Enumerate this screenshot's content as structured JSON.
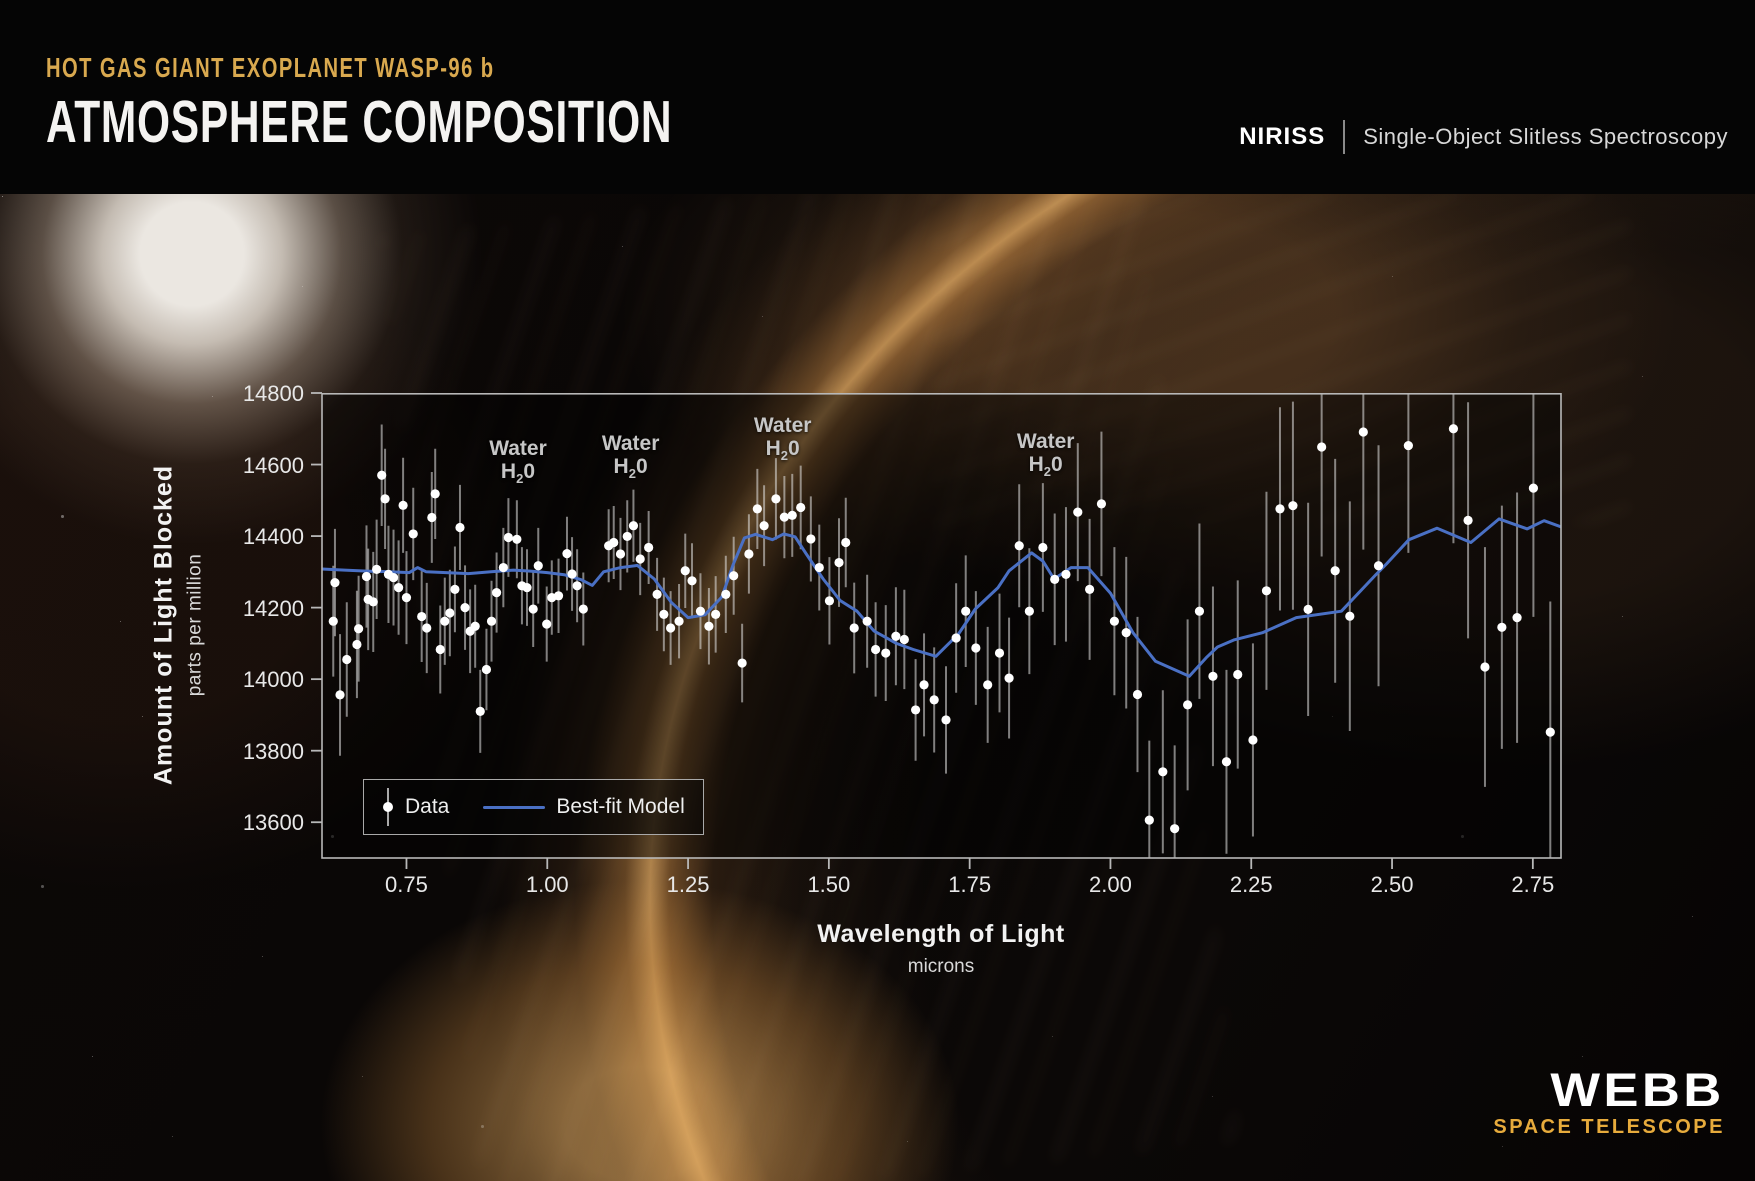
{
  "header": {
    "eyebrow": "HOT GAS GIANT EXOPLANET WASP-96 b",
    "title": "ATMOSPHERE COMPOSITION",
    "instrument": "NIRISS",
    "mode": "Single-Object Slitless Spectroscopy"
  },
  "branding": {
    "logo_main": "WEBB",
    "logo_sub": "SPACE TELESCOPE"
  },
  "colors": {
    "accent_gold": "#d9a94f",
    "logo_gold": "#e7ab3c",
    "model_blue": "#4a70c4",
    "data_white": "#ffffff",
    "axis_gray": "#b8b8b8",
    "error_bar": "rgba(228,228,228,0.55)",
    "annotation_gray": "#c6c6c6",
    "plot_fill": "rgba(2,2,2,0.48)"
  },
  "chart_data": {
    "type": "scatter",
    "title": "",
    "xlabel": "Wavelength of Light",
    "xlabel_sub": "microns",
    "ylabel": "Amount of Light Blocked",
    "ylabel_sub": "parts per million",
    "xlim": [
      0.6,
      2.8
    ],
    "ylim": [
      13500,
      14800
    ],
    "grid": false,
    "x_ticks": [
      "0.75",
      "1.00",
      "1.25",
      "1.50",
      "1.75",
      "2.00",
      "2.25",
      "2.50",
      "2.75"
    ],
    "y_ticks": [
      "14800",
      "14600",
      "14400",
      "14200",
      "14000",
      "13800",
      "13600"
    ],
    "legend": [
      {
        "label": "Data",
        "type": "point"
      },
      {
        "label": "Best-fit Model",
        "type": "line"
      }
    ],
    "annotations": [
      {
        "label": "Water",
        "formula": [
          "H",
          "2",
          "0"
        ],
        "x": 0.948,
        "y": 14640
      },
      {
        "label": "Water",
        "formula": [
          "H",
          "2",
          "0"
        ],
        "x": 1.148,
        "y": 14655
      },
      {
        "label": "Water",
        "formula": [
          "H",
          "2",
          "0"
        ],
        "x": 1.418,
        "y": 14705
      },
      {
        "label": "Water",
        "formula": [
          "H",
          "2",
          "0"
        ],
        "x": 1.885,
        "y": 14660
      }
    ],
    "series": [
      {
        "name": "Data",
        "type": "scatter",
        "points": [
          [
            0.62,
            14162,
            155
          ],
          [
            0.623,
            14270,
            150
          ],
          [
            0.632,
            13956,
            170
          ],
          [
            0.644,
            14055,
            160
          ],
          [
            0.662,
            14097,
            150
          ],
          [
            0.665,
            14141,
            148
          ],
          [
            0.679,
            14287,
            143
          ],
          [
            0.682,
            14223,
            142
          ],
          [
            0.691,
            14216,
            140
          ],
          [
            0.697,
            14307,
            139
          ],
          [
            0.706,
            14570,
            142
          ],
          [
            0.712,
            14504,
            140
          ],
          [
            0.718,
            14293,
            136
          ],
          [
            0.727,
            14284,
            134
          ],
          [
            0.736,
            14256,
            132
          ],
          [
            0.744,
            14486,
            133
          ],
          [
            0.75,
            14228,
            130
          ],
          [
            0.762,
            14406,
            129
          ],
          [
            0.777,
            14175,
            127
          ],
          [
            0.786,
            14143,
            126
          ],
          [
            0.795,
            14452,
            127
          ],
          [
            0.801,
            14518,
            126
          ],
          [
            0.81,
            14083,
            123
          ],
          [
            0.818,
            14162,
            122
          ],
          [
            0.827,
            14185,
            121
          ],
          [
            0.836,
            14251,
            120
          ],
          [
            0.845,
            14424,
            119
          ],
          [
            0.854,
            14200,
            118
          ],
          [
            0.863,
            14134,
            117
          ],
          [
            0.872,
            14148,
            116
          ],
          [
            0.881,
            13910,
            116
          ],
          [
            0.892,
            14027,
            114
          ],
          [
            0.901,
            14162,
            113
          ],
          [
            0.91,
            14242,
            112
          ],
          [
            0.922,
            14312,
            111
          ],
          [
            0.931,
            14396,
            110
          ],
          [
            0.946,
            14391,
            109
          ],
          [
            0.955,
            14261,
            108
          ],
          [
            0.964,
            14256,
            107
          ],
          [
            0.975,
            14196,
            106
          ],
          [
            0.984,
            14317,
            106
          ],
          [
            0.999,
            14154,
            105
          ],
          [
            1.008,
            14228,
            104
          ],
          [
            1.02,
            14233,
            104
          ],
          [
            1.035,
            14351,
            103
          ],
          [
            1.044,
            14294,
            103
          ],
          [
            1.053,
            14261,
            102
          ],
          [
            1.064,
            14196,
            102
          ],
          [
            1.109,
            14373,
            102
          ],
          [
            1.118,
            14382,
            102
          ],
          [
            1.13,
            14350,
            101
          ],
          [
            1.142,
            14399,
            101
          ],
          [
            1.153,
            14429,
            101
          ],
          [
            1.165,
            14336,
            101
          ],
          [
            1.18,
            14368,
            102
          ],
          [
            1.195,
            14237,
            102
          ],
          [
            1.207,
            14181,
            103
          ],
          [
            1.219,
            14143,
            103
          ],
          [
            1.234,
            14162,
            104
          ],
          [
            1.245,
            14303,
            104
          ],
          [
            1.257,
            14275,
            105
          ],
          [
            1.272,
            14190,
            106
          ],
          [
            1.287,
            14148,
            107
          ],
          [
            1.299,
            14181,
            107
          ],
          [
            1.317,
            14237,
            108
          ],
          [
            1.331,
            14289,
            109
          ],
          [
            1.346,
            14045,
            110
          ],
          [
            1.358,
            14350,
            111
          ],
          [
            1.373,
            14476,
            112
          ],
          [
            1.385,
            14429,
            113
          ],
          [
            1.406,
            14504,
            114
          ],
          [
            1.421,
            14453,
            115
          ],
          [
            1.435,
            14458,
            116
          ],
          [
            1.45,
            14480,
            117
          ],
          [
            1.468,
            14392,
            119
          ],
          [
            1.483,
            14312,
            120
          ],
          [
            1.501,
            14219,
            122
          ],
          [
            1.518,
            14326,
            124
          ],
          [
            1.53,
            14382,
            125
          ],
          [
            1.545,
            14143,
            127
          ],
          [
            1.568,
            14162,
            130
          ],
          [
            1.583,
            14083,
            132
          ],
          [
            1.601,
            14073,
            134
          ],
          [
            1.619,
            14120,
            137
          ],
          [
            1.634,
            14111,
            139
          ],
          [
            1.654,
            13914,
            142
          ],
          [
            1.669,
            13984,
            144
          ],
          [
            1.687,
            13942,
            147
          ],
          [
            1.708,
            13886,
            150
          ],
          [
            1.726,
            14115,
            153
          ],
          [
            1.743,
            14190,
            156
          ],
          [
            1.761,
            14087,
            159
          ],
          [
            1.782,
            13984,
            162
          ],
          [
            1.803,
            14073,
            166
          ],
          [
            1.82,
            14003,
            169
          ],
          [
            1.838,
            14373,
            172
          ],
          [
            1.856,
            14190,
            176
          ],
          [
            1.88,
            14368,
            180
          ],
          [
            1.901,
            14279,
            184
          ],
          [
            1.921,
            14293,
            188
          ],
          [
            1.942,
            14467,
            193
          ],
          [
            1.963,
            14251,
            197
          ],
          [
            1.984,
            14490,
            202
          ],
          [
            2.007,
            14162,
            207
          ],
          [
            2.028,
            14130,
            212
          ],
          [
            2.048,
            13957,
            217
          ],
          [
            2.069,
            13606,
            222
          ],
          [
            2.093,
            13741,
            228
          ],
          [
            2.114,
            13582,
            233
          ],
          [
            2.137,
            13928,
            239
          ],
          [
            2.158,
            14190,
            245
          ],
          [
            2.182,
            14008,
            251
          ],
          [
            2.206,
            13769,
            257
          ],
          [
            2.226,
            14013,
            263
          ],
          [
            2.253,
            13830,
            270
          ],
          [
            2.277,
            14247,
            277
          ],
          [
            2.301,
            14476,
            284
          ],
          [
            2.324,
            14485,
            291
          ],
          [
            2.351,
            14195,
            298
          ],
          [
            2.375,
            14649,
            306
          ],
          [
            2.399,
            14303,
            313
          ],
          [
            2.425,
            14176,
            321
          ],
          [
            2.449,
            14691,
            329
          ],
          [
            2.476,
            14317,
            337
          ],
          [
            2.529,
            14653,
            300
          ],
          [
            2.609,
            14700,
            320
          ],
          [
            2.635,
            14444,
            330
          ],
          [
            2.665,
            14034,
            335
          ],
          [
            2.695,
            14145,
            340
          ],
          [
            2.722,
            14172,
            350
          ],
          [
            2.751,
            14534,
            360
          ],
          [
            2.781,
            13852,
            365
          ]
        ]
      },
      {
        "name": "Best-fit Model",
        "type": "line",
        "points": [
          [
            0.6,
            14308
          ],
          [
            0.64,
            14305
          ],
          [
            0.68,
            14302
          ],
          [
            0.72,
            14300
          ],
          [
            0.755,
            14298
          ],
          [
            0.77,
            14312
          ],
          [
            0.785,
            14300
          ],
          [
            0.82,
            14298
          ],
          [
            0.86,
            14295
          ],
          [
            0.9,
            14300
          ],
          [
            0.94,
            14305
          ],
          [
            0.97,
            14302
          ],
          [
            1.0,
            14298
          ],
          [
            1.03,
            14292
          ],
          [
            1.06,
            14278
          ],
          [
            1.08,
            14262
          ],
          [
            1.1,
            14300
          ],
          [
            1.13,
            14312
          ],
          [
            1.16,
            14318
          ],
          [
            1.19,
            14280
          ],
          [
            1.22,
            14215
          ],
          [
            1.25,
            14172
          ],
          [
            1.28,
            14180
          ],
          [
            1.31,
            14230
          ],
          [
            1.33,
            14320
          ],
          [
            1.35,
            14395
          ],
          [
            1.37,
            14405
          ],
          [
            1.4,
            14390
          ],
          [
            1.42,
            14406
          ],
          [
            1.44,
            14398
          ],
          [
            1.46,
            14350
          ],
          [
            1.49,
            14280
          ],
          [
            1.52,
            14220
          ],
          [
            1.55,
            14190
          ],
          [
            1.58,
            14135
          ],
          [
            1.62,
            14100
          ],
          [
            1.65,
            14083
          ],
          [
            1.69,
            14064
          ],
          [
            1.73,
            14126
          ],
          [
            1.76,
            14196
          ],
          [
            1.8,
            14255
          ],
          [
            1.82,
            14303
          ],
          [
            1.86,
            14353
          ],
          [
            1.88,
            14330
          ],
          [
            1.9,
            14280
          ],
          [
            1.93,
            14312
          ],
          [
            1.96,
            14312
          ],
          [
            2.0,
            14240
          ],
          [
            2.04,
            14130
          ],
          [
            2.08,
            14050
          ],
          [
            2.14,
            14008
          ],
          [
            2.17,
            14060
          ],
          [
            2.19,
            14090
          ],
          [
            2.22,
            14110
          ],
          [
            2.27,
            14130
          ],
          [
            2.33,
            14172
          ],
          [
            2.41,
            14190
          ],
          [
            2.47,
            14290
          ],
          [
            2.49,
            14322
          ],
          [
            2.53,
            14390
          ],
          [
            2.58,
            14422
          ],
          [
            2.64,
            14382
          ],
          [
            2.69,
            14448
          ],
          [
            2.74,
            14420
          ],
          [
            2.77,
            14443
          ],
          [
            2.8,
            14426
          ]
        ]
      }
    ]
  }
}
